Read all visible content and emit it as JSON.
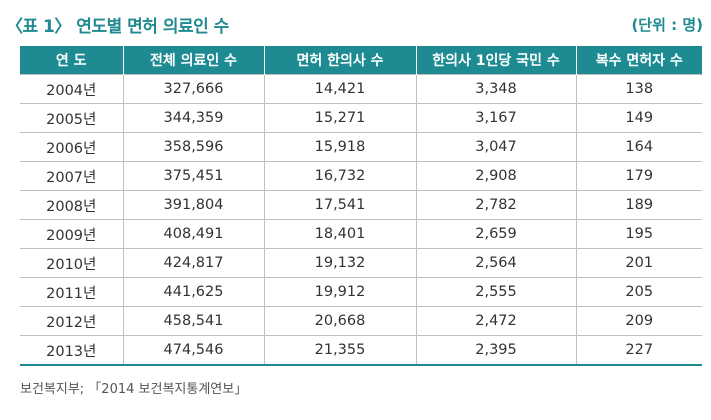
{
  "header": {
    "title": "〈표 1〉 연도별 면허 의료인 수",
    "unit": "(단위 : 명)"
  },
  "table": {
    "columns": [
      "연  도",
      "전체 의료인 수",
      "면허 한의사 수",
      "한의사 1인당 국민 수",
      "복수 면허자 수"
    ],
    "rows": [
      [
        "2004년",
        "327,666",
        "14,421",
        "3,348",
        "138"
      ],
      [
        "2005년",
        "344,359",
        "15,271",
        "3,167",
        "149"
      ],
      [
        "2006년",
        "358,596",
        "15,918",
        "3,047",
        "164"
      ],
      [
        "2007년",
        "375,451",
        "16,732",
        "2,908",
        "179"
      ],
      [
        "2008년",
        "391,804",
        "17,541",
        "2,782",
        "189"
      ],
      [
        "2009년",
        "408,491",
        "18,401",
        "2,659",
        "195"
      ],
      [
        "2010년",
        "424,817",
        "19,132",
        "2,564",
        "201"
      ],
      [
        "2011년",
        "441,625",
        "19,912",
        "2,555",
        "205"
      ],
      [
        "2012년",
        "458,541",
        "20,668",
        "2,472",
        "209"
      ],
      [
        "2013년",
        "474,546",
        "21,355",
        "2,395",
        "227"
      ]
    ]
  },
  "footnote": "보건복지부; 「2014 보건복지통계연보」",
  "colors": {
    "accent": "#1e8b93",
    "title": "#1f8a8f"
  }
}
